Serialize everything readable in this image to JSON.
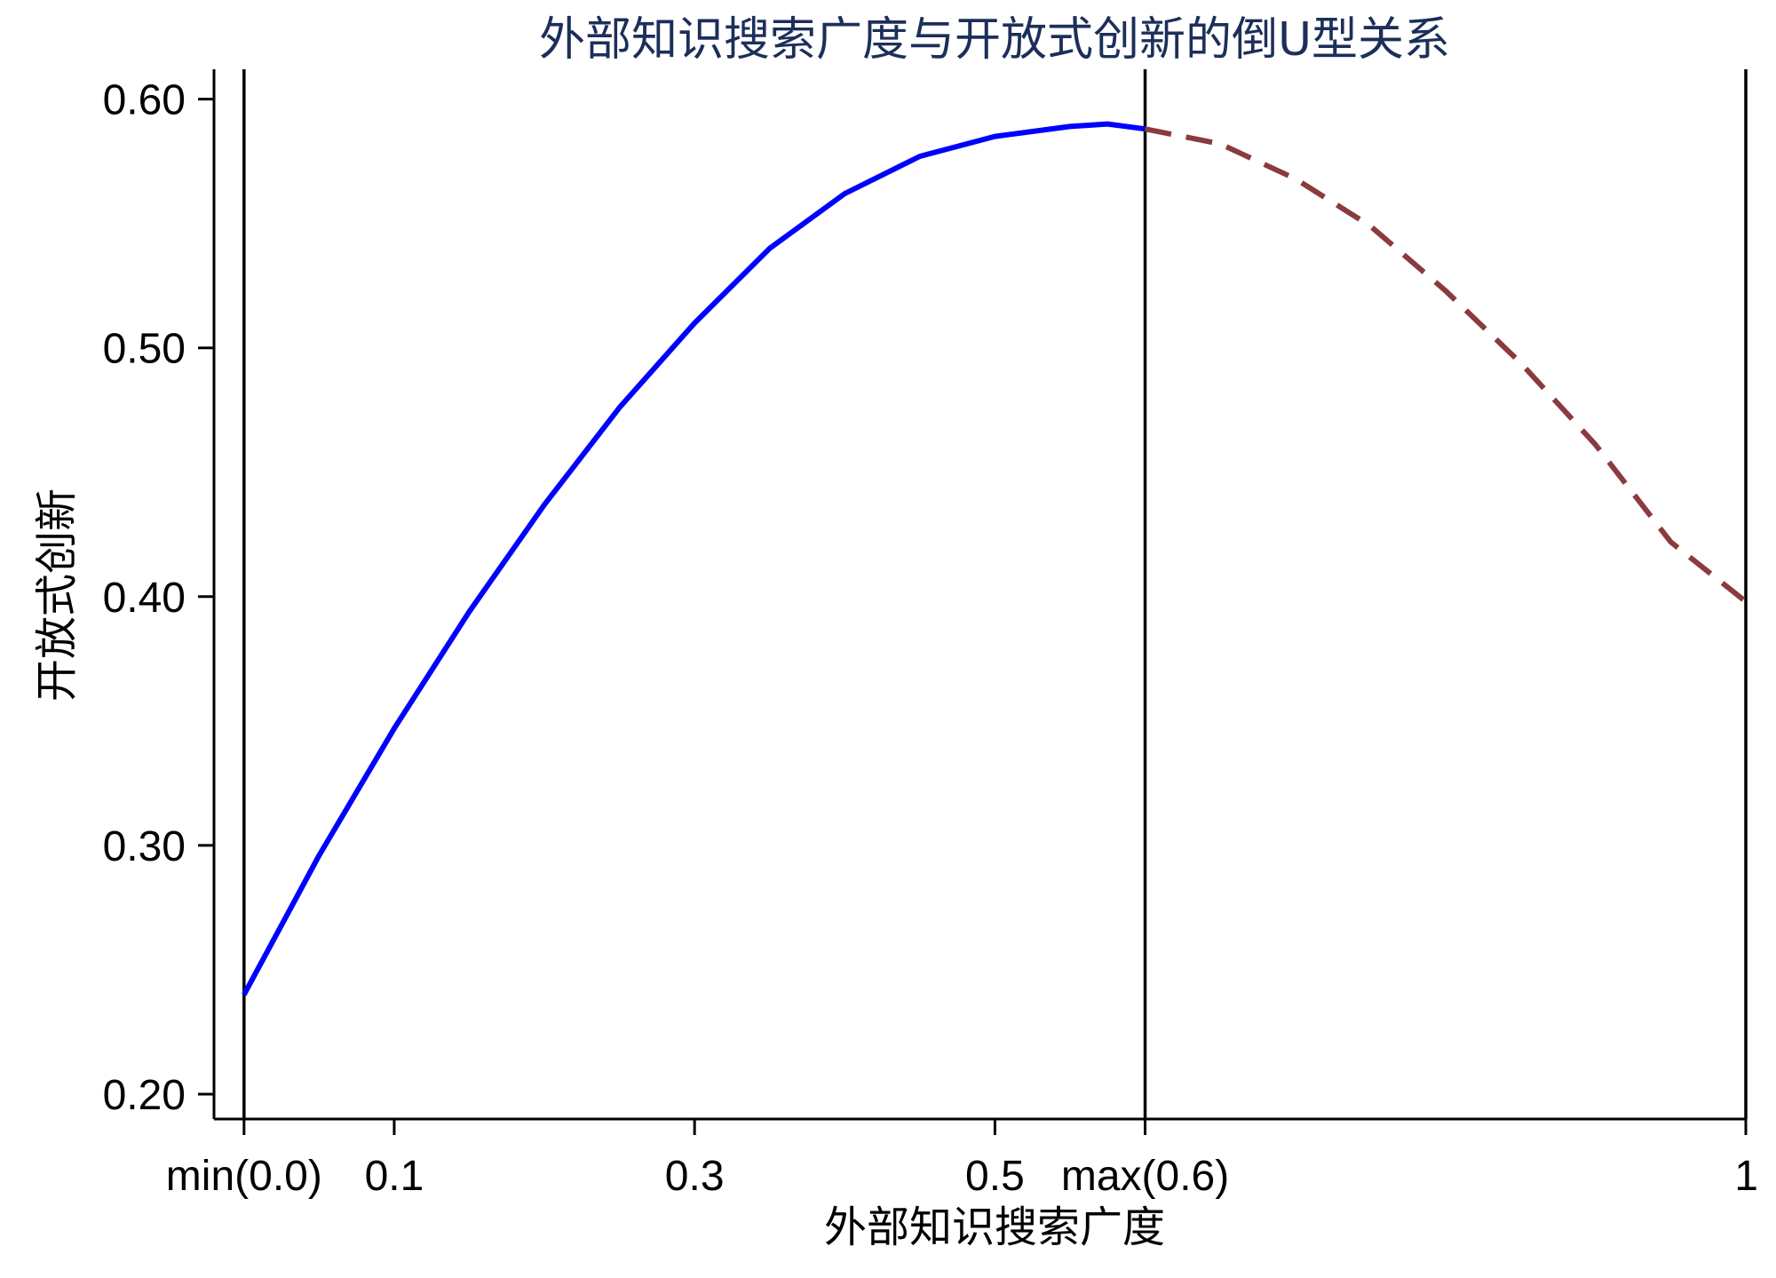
{
  "chart_data": {
    "type": "line",
    "title": "外部知识搜索广度与开放式创新的倒U型关系",
    "xlabel": "外部知识搜索广度",
    "ylabel": "开放式创新",
    "xlim": [
      -0.02,
      1.0
    ],
    "ylim": [
      0.19,
      0.612
    ],
    "x_ticks": [
      {
        "value": 0.0,
        "label": "min(0.0)"
      },
      {
        "value": 0.1,
        "label": "0.1"
      },
      {
        "value": 0.3,
        "label": "0.3"
      },
      {
        "value": 0.5,
        "label": "0.5"
      },
      {
        "value": 0.6,
        "label": "max(0.6)"
      },
      {
        "value": 1.0,
        "label": "1"
      }
    ],
    "y_ticks": [
      {
        "value": 0.2,
        "label": "0.20"
      },
      {
        "value": 0.3,
        "label": "0.30"
      },
      {
        "value": 0.4,
        "label": "0.40"
      },
      {
        "value": 0.5,
        "label": "0.50"
      },
      {
        "value": 0.6,
        "label": "0.60"
      }
    ],
    "vertical_lines": [
      0.0,
      0.6,
      1.0
    ],
    "series": [
      {
        "style": "solid",
        "color": "#0000ff",
        "x": [
          0.0,
          0.05,
          0.1,
          0.15,
          0.2,
          0.25,
          0.3,
          0.35,
          0.4,
          0.45,
          0.5,
          0.55,
          0.575,
          0.6
        ],
        "y": [
          0.24,
          0.296,
          0.347,
          0.394,
          0.437,
          0.476,
          0.51,
          0.54,
          0.562,
          0.577,
          0.585,
          0.589,
          0.59,
          0.588
        ]
      },
      {
        "style": "dashed",
        "color": "#8b3a3e",
        "x": [
          0.6,
          0.65,
          0.7,
          0.75,
          0.8,
          0.85,
          0.9,
          0.95,
          1.0
        ],
        "y": [
          0.588,
          0.582,
          0.568,
          0.549,
          0.523,
          0.494,
          0.461,
          0.422,
          0.398
        ]
      }
    ],
    "grid": false,
    "legend": "none"
  }
}
